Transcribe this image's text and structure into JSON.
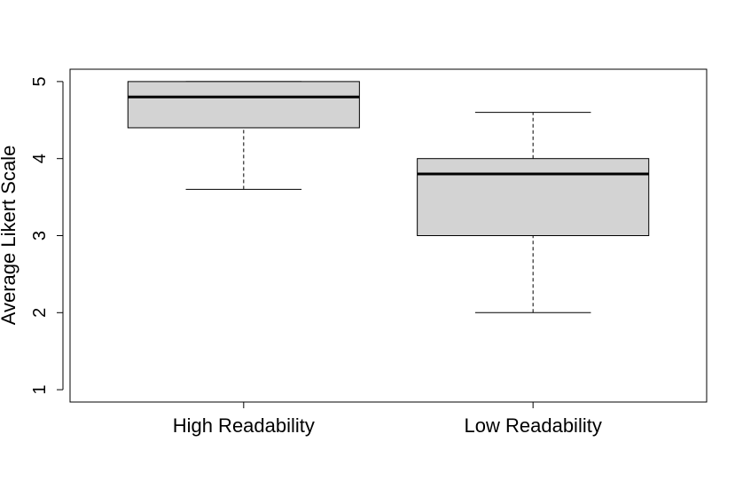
{
  "chart_data": {
    "type": "box",
    "title": "",
    "xlabel": "",
    "ylabel": "Average Likert Scale",
    "ylim": [
      0.84,
      5.16
    ],
    "yticks": [
      1,
      2,
      3,
      4,
      5
    ],
    "grid": false,
    "categories": [
      "High Readability",
      "Low Readability"
    ],
    "boxes": [
      {
        "name": "High Readability",
        "min": 3.6,
        "q1": 4.4,
        "median": 4.8,
        "q3": 5.0,
        "max": 5.0
      },
      {
        "name": "Low Readability",
        "min": 2.0,
        "q1": 3.0,
        "median": 3.8,
        "q3": 4.0,
        "max": 4.6
      }
    ],
    "colors": {
      "box_fill": "#d3d3d3",
      "stroke": "#000000"
    }
  }
}
